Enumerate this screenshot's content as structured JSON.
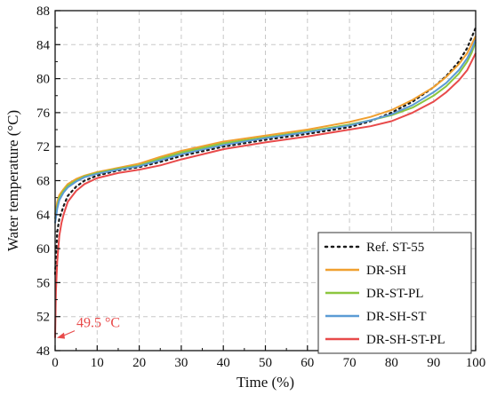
{
  "chart_data": {
    "type": "line",
    "xlabel": "Time (%)",
    "ylabel": "Water temperature (°C)",
    "xlim": [
      0,
      100
    ],
    "ylim": [
      48,
      88
    ],
    "xticks": [
      0,
      10,
      20,
      30,
      40,
      50,
      60,
      70,
      80,
      90,
      100
    ],
    "yticks": [
      48,
      52,
      56,
      60,
      64,
      68,
      72,
      76,
      80,
      84,
      88
    ],
    "grid": true,
    "legend_position": "bottom-right",
    "series": [
      {
        "name": "Ref. ST-55",
        "color": "#1a1a1a",
        "style": "dotted",
        "x": [
          0,
          0.5,
          1,
          2,
          3,
          5,
          7,
          10,
          15,
          20,
          25,
          30,
          40,
          50,
          60,
          70,
          75,
          80,
          85,
          90,
          93,
          96,
          98,
          99,
          100
        ],
        "y": [
          57,
          62,
          63.5,
          65,
          66.2,
          67.3,
          68.0,
          68.6,
          69.2,
          69.6,
          70.2,
          70.9,
          72.0,
          72.8,
          73.5,
          74.3,
          75.0,
          76.0,
          77.3,
          79.0,
          80.3,
          82.0,
          83.6,
          84.8,
          86.0
        ]
      },
      {
        "name": "DR-SH",
        "color": "#f0a030",
        "style": "solid",
        "x": [
          0,
          0.5,
          1,
          2,
          3,
          5,
          7,
          10,
          15,
          20,
          25,
          30,
          40,
          50,
          60,
          70,
          75,
          80,
          85,
          90,
          93,
          96,
          98,
          99,
          100
        ],
        "y": [
          64,
          65.5,
          66.3,
          67.0,
          67.6,
          68.2,
          68.6,
          69.0,
          69.5,
          70.0,
          70.8,
          71.5,
          72.6,
          73.3,
          74.0,
          74.9,
          75.5,
          76.3,
          77.5,
          79.0,
          80.2,
          81.7,
          83.0,
          84.0,
          85.0
        ]
      },
      {
        "name": "DR-ST-PL",
        "color": "#8cc63f",
        "style": "solid",
        "x": [
          0,
          0.5,
          1,
          2,
          3,
          5,
          7,
          10,
          15,
          20,
          25,
          30,
          40,
          50,
          60,
          70,
          75,
          80,
          85,
          90,
          93,
          96,
          98,
          99,
          100
        ],
        "y": [
          63.5,
          65.0,
          66.0,
          66.8,
          67.4,
          68.0,
          68.5,
          68.9,
          69.4,
          69.8,
          70.6,
          71.3,
          72.4,
          73.1,
          73.8,
          74.6,
          75.1,
          75.7,
          76.6,
          78.0,
          79.1,
          80.6,
          82.0,
          83.0,
          84.3
        ]
      },
      {
        "name": "DR-SH-ST",
        "color": "#5b9bd5",
        "style": "solid",
        "x": [
          0,
          0.5,
          1,
          2,
          3,
          5,
          7,
          10,
          15,
          20,
          25,
          30,
          40,
          50,
          60,
          70,
          75,
          80,
          85,
          90,
          93,
          96,
          98,
          99,
          100
        ],
        "y": [
          63.0,
          64.7,
          65.7,
          66.6,
          67.2,
          67.9,
          68.4,
          68.8,
          69.3,
          69.7,
          70.4,
          71.1,
          72.2,
          73.0,
          73.7,
          74.5,
          75.1,
          75.8,
          76.9,
          78.4,
          79.5,
          81.0,
          82.4,
          83.4,
          84.6
        ]
      },
      {
        "name": "DR-SH-ST-PL",
        "color": "#e84a4a",
        "style": "solid",
        "x": [
          0,
          0.2,
          0.5,
          1,
          1.5,
          2,
          3,
          5,
          7,
          10,
          15,
          20,
          25,
          30,
          40,
          50,
          60,
          70,
          75,
          80,
          85,
          90,
          93,
          96,
          98,
          99,
          100
        ],
        "y": [
          49.5,
          55,
          58.5,
          61.5,
          63.0,
          64.0,
          65.5,
          66.8,
          67.6,
          68.3,
          68.9,
          69.3,
          69.8,
          70.5,
          71.7,
          72.5,
          73.2,
          74.0,
          74.4,
          75.0,
          76.0,
          77.3,
          78.4,
          79.8,
          81.0,
          82.0,
          83.0
        ]
      }
    ],
    "annotation": {
      "text": "49.5 °C",
      "x": 0,
      "y": 49.5,
      "color": "#e84a4a"
    }
  }
}
